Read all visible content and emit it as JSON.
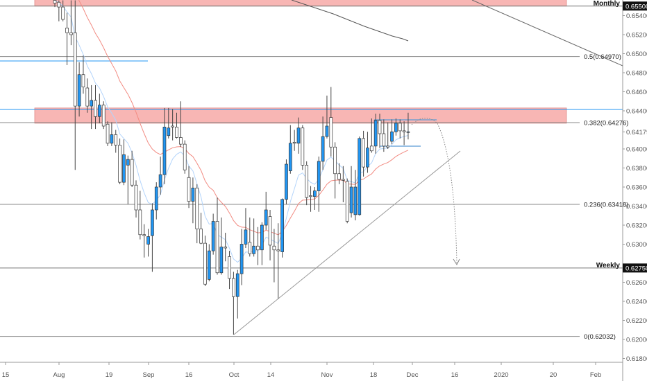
{
  "chart_data": {
    "type": "candlestick",
    "title": "",
    "colors": {
      "up": "#2196f3",
      "down": "#ffffff",
      "outline": "#333333",
      "zone": "#f8b6b4",
      "fast_ma": "#b3d4fb",
      "slow_ma": "#f28b82",
      "level_line": "#2196f3"
    },
    "ylim": [
      0.617,
      0.656
    ],
    "y_ticks": [
      "0.65400",
      "0.65200",
      "0.65000",
      "0.64800",
      "0.64600",
      "0.64400",
      "0.64179",
      "0.64000",
      "0.63800",
      "0.63600",
      "0.63400",
      "0.63200",
      "0.63000",
      "0.62600",
      "0.62400",
      "0.62200",
      "0.62000",
      "0.61800"
    ],
    "y_tick_values": [
      0.654,
      0.652,
      0.65,
      0.648,
      0.646,
      0.644,
      0.64179,
      0.64,
      0.638,
      0.636,
      0.634,
      0.632,
      0.63,
      0.626,
      0.624,
      0.622,
      0.62,
      0.618
    ],
    "x_ticks": [
      "15",
      "Aug",
      "19",
      "Sep",
      "16",
      "Oct",
      "14",
      "Nov",
      "18",
      "Dec",
      "16",
      "2020",
      "20",
      "Feb"
    ],
    "levels": {
      "monthly": {
        "label": "Monthly",
        "price": 0.655,
        "tag": "0.65500"
      },
      "weekly": {
        "label": "Weekly",
        "price": 0.6275,
        "tag": "0.62750"
      }
    },
    "zones": [
      {
        "top": 0.656,
        "bottom": 0.655
      },
      {
        "top": 0.6443,
        "bottom": 0.6427
      }
    ],
    "fib": [
      {
        "label": "0.5(0.64970)",
        "price": 0.6497
      },
      {
        "label": "0.382(0.64276)",
        "price": 0.64276
      },
      {
        "label": "0.236(0.63418)",
        "price": 0.63418
      },
      {
        "label": "0(0.62032)",
        "price": 0.62032
      }
    ],
    "candles": [
      [
        0.6556,
        0.656,
        0.6549,
        0.6553
      ],
      [
        0.6554,
        0.6556,
        0.6534,
        0.6549
      ],
      [
        0.6549,
        0.6556,
        0.6534,
        0.6536
      ],
      [
        0.6527,
        0.6543,
        0.6488,
        0.6522
      ],
      [
        0.6522,
        0.6556,
        0.6509,
        0.652
      ],
      [
        0.6522,
        0.6556,
        0.6378,
        0.6445
      ],
      [
        0.6445,
        0.6491,
        0.6434,
        0.6478
      ],
      [
        0.6478,
        0.6498,
        0.6458,
        0.6465
      ],
      [
        0.6464,
        0.6474,
        0.6438,
        0.6445
      ],
      [
        0.6445,
        0.6467,
        0.6421,
        0.6451
      ],
      [
        0.6451,
        0.6467,
        0.6421,
        0.6434
      ],
      [
        0.6434,
        0.6458,
        0.6427,
        0.6446
      ],
      [
        0.6446,
        0.645,
        0.6421,
        0.6424
      ],
      [
        0.6426,
        0.6429,
        0.6403,
        0.6406
      ],
      [
        0.6406,
        0.6428,
        0.6403,
        0.6415
      ],
      [
        0.6415,
        0.642,
        0.6396,
        0.6404
      ],
      [
        0.6404,
        0.6411,
        0.6363,
        0.6365
      ],
      [
        0.6365,
        0.641,
        0.6362,
        0.6394
      ],
      [
        0.6383,
        0.6393,
        0.6342,
        0.6389
      ],
      [
        0.6389,
        0.6398,
        0.636,
        0.6362
      ],
      [
        0.6362,
        0.6367,
        0.6328,
        0.6336
      ],
      [
        0.6336,
        0.6356,
        0.6305,
        0.631
      ],
      [
        0.631,
        0.6321,
        0.6286,
        0.6309
      ],
      [
        0.63,
        0.6316,
        0.6287,
        0.6308
      ],
      [
        0.6309,
        0.6343,
        0.6271,
        0.6336
      ],
      [
        0.6336,
        0.6365,
        0.6326,
        0.636
      ],
      [
        0.636,
        0.6392,
        0.6352,
        0.6373
      ],
      [
        0.6373,
        0.6443,
        0.6363,
        0.6423
      ],
      [
        0.6414,
        0.6443,
        0.6411,
        0.6422
      ],
      [
        0.6424,
        0.6442,
        0.6409,
        0.6423
      ],
      [
        0.6423,
        0.6438,
        0.6411,
        0.6412
      ],
      [
        0.6412,
        0.645,
        0.6402,
        0.6405
      ],
      [
        0.6405,
        0.6409,
        0.6374,
        0.6378
      ],
      [
        0.637,
        0.6382,
        0.6338,
        0.6345
      ],
      [
        0.6345,
        0.637,
        0.6322,
        0.6359
      ],
      [
        0.6359,
        0.6363,
        0.6301,
        0.6316
      ],
      [
        0.6316,
        0.6333,
        0.63,
        0.6301
      ],
      [
        0.6301,
        0.6309,
        0.6256,
        0.6258
      ],
      [
        0.6263,
        0.63,
        0.6261,
        0.6293
      ],
      [
        0.6293,
        0.6332,
        0.6289,
        0.6324
      ],
      [
        0.6324,
        0.6349,
        0.6268,
        0.627
      ],
      [
        0.627,
        0.6328,
        0.6268,
        0.6297
      ],
      [
        0.6297,
        0.6312,
        0.6282,
        0.6296
      ],
      [
        0.6287,
        0.6293,
        0.6253,
        0.6264
      ],
      [
        0.6264,
        0.6271,
        0.6205,
        0.6245
      ],
      [
        0.6245,
        0.6273,
        0.6222,
        0.6269
      ],
      [
        0.6269,
        0.6316,
        0.6257,
        0.63
      ],
      [
        0.63,
        0.6338,
        0.6296,
        0.6315
      ],
      [
        0.6302,
        0.6328,
        0.6287,
        0.629
      ],
      [
        0.629,
        0.6327,
        0.6287,
        0.6298
      ],
      [
        0.6298,
        0.6318,
        0.6278,
        0.6294
      ],
      [
        0.6294,
        0.6323,
        0.6278,
        0.632
      ],
      [
        0.632,
        0.6355,
        0.6315,
        0.6336
      ],
      [
        0.6329,
        0.6336,
        0.6283,
        0.6299
      ],
      [
        0.6298,
        0.6316,
        0.626,
        0.6294
      ],
      [
        0.6294,
        0.6322,
        0.6243,
        0.6293
      ],
      [
        0.6292,
        0.6348,
        0.6286,
        0.6347
      ],
      [
        0.6347,
        0.6389,
        0.6342,
        0.6384
      ],
      [
        0.6377,
        0.6425,
        0.6374,
        0.6406
      ],
      [
        0.6407,
        0.642,
        0.6398,
        0.6406
      ],
      [
        0.6406,
        0.6433,
        0.6395,
        0.6422
      ],
      [
        0.6422,
        0.6425,
        0.6378,
        0.6383
      ],
      [
        0.6383,
        0.6387,
        0.6341,
        0.6349
      ],
      [
        0.6351,
        0.6361,
        0.6334,
        0.635
      ],
      [
        0.635,
        0.636,
        0.6336,
        0.6356
      ],
      [
        0.6356,
        0.6392,
        0.6334,
        0.6387
      ],
      [
        0.6387,
        0.6434,
        0.6378,
        0.6413
      ],
      [
        0.6413,
        0.6456,
        0.6411,
        0.6424
      ],
      [
        0.6433,
        0.6465,
        0.6392,
        0.6402
      ],
      [
        0.6402,
        0.6407,
        0.6348,
        0.6374
      ],
      [
        0.6374,
        0.6385,
        0.6363,
        0.6368
      ],
      [
        0.6368,
        0.6382,
        0.6344,
        0.6367
      ],
      [
        0.6366,
        0.6369,
        0.6322,
        0.6324
      ],
      [
        0.6333,
        0.6382,
        0.6328,
        0.636
      ],
      [
        0.6331,
        0.6378,
        0.6325,
        0.636
      ],
      [
        0.6331,
        0.6413,
        0.633,
        0.6411
      ],
      [
        0.6411,
        0.6419,
        0.6371,
        0.6381
      ],
      [
        0.6381,
        0.6418,
        0.6375,
        0.6401
      ],
      [
        0.6403,
        0.6432,
        0.6396,
        0.6398
      ],
      [
        0.6403,
        0.6437,
        0.6395,
        0.643
      ],
      [
        0.643,
        0.6437,
        0.6401,
        0.6416
      ],
      [
        0.6416,
        0.6431,
        0.6397,
        0.6403
      ],
      [
        0.6403,
        0.6428,
        0.64,
        0.6402
      ],
      [
        0.6408,
        0.6431,
        0.6405,
        0.6418
      ],
      [
        0.6418,
        0.6432,
        0.6414,
        0.6427
      ],
      [
        0.6427,
        0.6431,
        0.6411,
        0.6419
      ],
      [
        0.6419,
        0.6429,
        0.6404,
        0.6418
      ],
      [
        0.6418,
        0.6438,
        0.641,
        0.6418
      ]
    ]
  }
}
